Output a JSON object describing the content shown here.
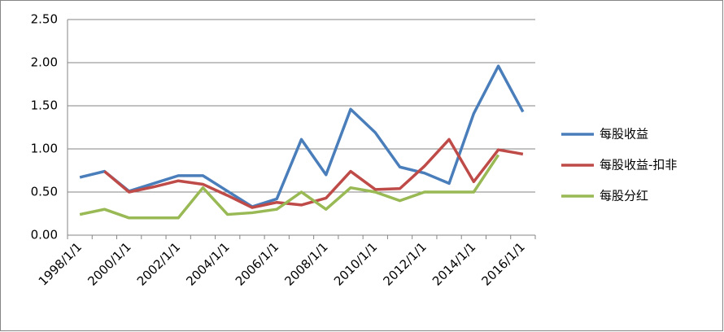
{
  "chart_data": {
    "type": "line",
    "categories": [
      "1998/1/1",
      null,
      "2000/1/1",
      null,
      "2002/1/1",
      null,
      "2004/1/1",
      null,
      "2006/1/1",
      null,
      "2008/1/1",
      null,
      "2010/1/1",
      null,
      "2012/1/1",
      null,
      "2014/1/1",
      null,
      "2016/1/1"
    ],
    "series": [
      {
        "name": "每股收益",
        "color": "#4a7ebb",
        "values": [
          0.67,
          0.74,
          0.51,
          0.6,
          0.69,
          0.69,
          0.51,
          0.33,
          0.42,
          1.11,
          0.7,
          1.46,
          1.19,
          0.79,
          0.72,
          0.6,
          1.41,
          1.96,
          1.43
        ]
      },
      {
        "name": "每股收益-扣非",
        "color": "#be4b48",
        "values": [
          null,
          0.74,
          0.5,
          0.56,
          0.63,
          0.59,
          0.46,
          0.32,
          0.38,
          0.35,
          0.43,
          0.74,
          0.53,
          0.54,
          0.8,
          1.11,
          0.62,
          0.99,
          0.94
        ]
      },
      {
        "name": "每股分红",
        "color": "#98b954",
        "values": [
          0.24,
          0.3,
          0.2,
          0.2,
          0.2,
          0.55,
          0.24,
          0.26,
          0.3,
          0.5,
          0.3,
          0.55,
          0.5,
          0.4,
          0.5,
          0.5,
          0.5,
          0.93,
          null
        ]
      }
    ],
    "ylim": [
      0,
      2.5
    ],
    "yticks": [
      {
        "value": 0,
        "label": "0.00"
      },
      {
        "value": 0.5,
        "label": "0.50"
      },
      {
        "value": 1,
        "label": "1.00"
      },
      {
        "value": 1.5,
        "label": "1.50"
      },
      {
        "value": 2,
        "label": "2.00"
      },
      {
        "value": 2.5,
        "label": "2.50"
      }
    ],
    "grid": true,
    "legend": "right"
  }
}
